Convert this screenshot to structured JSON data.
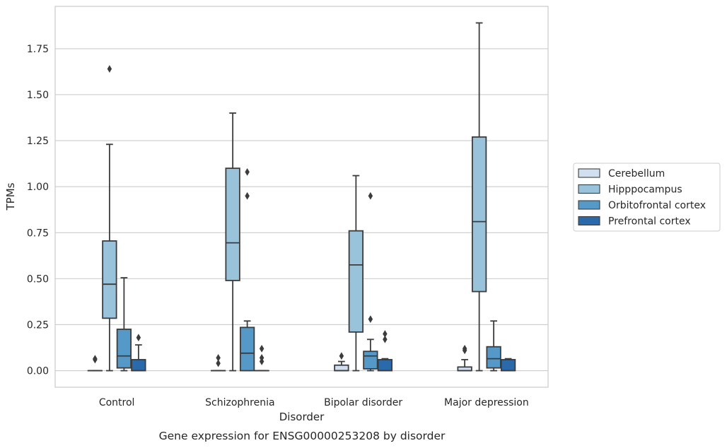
{
  "chart_data": {
    "type": "box",
    "caption": "Gene expression for ENSG00000253208 by disorder",
    "xlabel": "Disorder",
    "ylabel": "TPMs",
    "ylim": [
      -0.09,
      1.98
    ],
    "yticks": [
      0.0,
      0.25,
      0.5,
      0.75,
      1.0,
      1.25,
      1.5,
      1.75
    ],
    "ytick_labels": [
      "0.00",
      "0.25",
      "0.50",
      "0.75",
      "1.00",
      "1.25",
      "1.50",
      "1.75"
    ],
    "grid": true,
    "legend_position": "right",
    "categories": [
      "Control",
      "Schizophrenia",
      "Bipolar disorder",
      "Major depression"
    ],
    "series": [
      {
        "name": "Cerebellum",
        "color": "#d1e0f0",
        "boxes": [
          {
            "whislo": 0.0,
            "q1": 0.0,
            "med": 0.0,
            "q3": 0.0,
            "whishi": 0.0,
            "fliers": [
              0.06,
              0.065
            ]
          },
          {
            "whislo": 0.0,
            "q1": 0.0,
            "med": 0.0,
            "q3": 0.0,
            "whishi": 0.0,
            "fliers": [
              0.04,
              0.07
            ]
          },
          {
            "whislo": 0.0,
            "q1": 0.0,
            "med": 0.0,
            "q3": 0.03,
            "whishi": 0.05,
            "fliers": [
              0.08
            ]
          },
          {
            "whislo": 0.0,
            "q1": 0.0,
            "med": 0.0,
            "q3": 0.02,
            "whishi": 0.06,
            "fliers": [
              0.11,
              0.12
            ]
          }
        ]
      },
      {
        "name": "Hipppocampus",
        "color": "#99c2db",
        "boxes": [
          {
            "whislo": 0.0,
            "q1": 0.285,
            "med": 0.47,
            "q3": 0.705,
            "whishi": 1.23,
            "fliers": [
              1.64
            ]
          },
          {
            "whislo": 0.0,
            "q1": 0.49,
            "med": 0.695,
            "q3": 1.1,
            "whishi": 1.4,
            "fliers": []
          },
          {
            "whislo": 0.0,
            "q1": 0.21,
            "med": 0.575,
            "q3": 0.76,
            "whishi": 1.06,
            "fliers": []
          },
          {
            "whislo": 0.0,
            "q1": 0.43,
            "med": 0.81,
            "q3": 1.27,
            "whishi": 1.89,
            "fliers": []
          }
        ]
      },
      {
        "name": "Orbitofrontal cortex",
        "color": "#5499c7",
        "boxes": [
          {
            "whislo": 0.0,
            "q1": 0.015,
            "med": 0.08,
            "q3": 0.225,
            "whishi": 0.505,
            "fliers": []
          },
          {
            "whislo": 0.0,
            "q1": 0.0,
            "med": 0.095,
            "q3": 0.235,
            "whishi": 0.27,
            "fliers": [
              1.08,
              0.95
            ]
          },
          {
            "whislo": 0.0,
            "q1": 0.01,
            "med": 0.08,
            "q3": 0.105,
            "whishi": 0.17,
            "fliers": [
              0.95,
              0.28
            ]
          },
          {
            "whislo": 0.0,
            "q1": 0.015,
            "med": 0.065,
            "q3": 0.13,
            "whishi": 0.27,
            "fliers": []
          }
        ]
      },
      {
        "name": "Prefrontal cortex",
        "color": "#2a6aaa",
        "boxes": [
          {
            "whislo": 0.0,
            "q1": 0.0,
            "med": 0.0,
            "q3": 0.06,
            "whishi": 0.14,
            "fliers": [
              0.18
            ]
          },
          {
            "whislo": 0.0,
            "q1": 0.0,
            "med": 0.0,
            "q3": 0.0,
            "whishi": 0.0,
            "fliers": [
              0.12,
              0.07,
              0.05
            ]
          },
          {
            "whislo": 0.0,
            "q1": 0.0,
            "med": 0.0,
            "q3": 0.06,
            "whishi": 0.065,
            "fliers": [
              0.2,
              0.17
            ]
          },
          {
            "whislo": 0.0,
            "q1": 0.0,
            "med": 0.0,
            "q3": 0.06,
            "whishi": 0.065,
            "fliers": []
          }
        ]
      }
    ]
  }
}
